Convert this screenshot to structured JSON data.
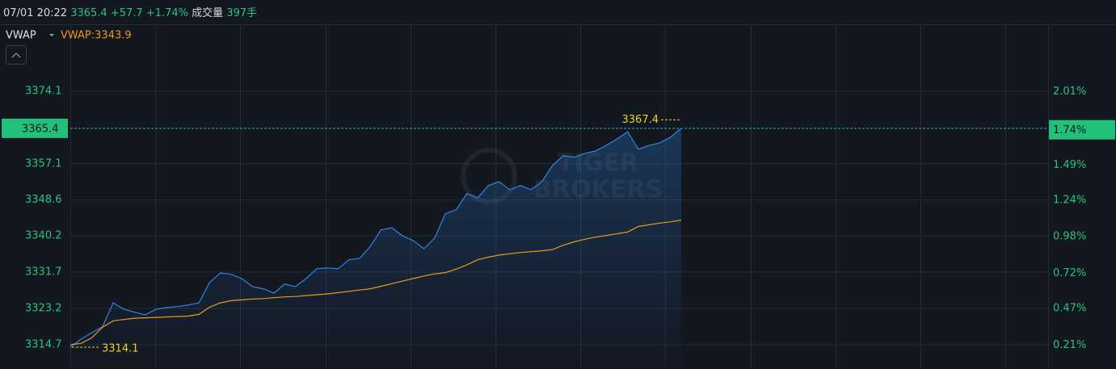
{
  "header": {
    "date_time": "07/01 20:22",
    "price": "3365.4",
    "change": "+57.7",
    "change_pct": "+1.74%",
    "volume_label": "成交量",
    "volume": "397手"
  },
  "chart_data": {
    "type": "line",
    "indicator": "VWAP",
    "indicator_value_label": "VWAP:3343.9",
    "watermark": [
      "TIGER",
      "BROKERS"
    ],
    "series": [
      {
        "color": "#2f86e6",
        "values": [
          3314.1,
          3316.0,
          3317.5,
          3318.9,
          3324.5,
          3323.0,
          3322.3,
          3321.7,
          3323.0,
          3323.4,
          3323.6,
          3324.0,
          3324.5,
          3329.3,
          3331.5,
          3331.2,
          3330.2,
          3328.3,
          3327.8,
          3326.8,
          3328.9,
          3328.3,
          3330.2,
          3332.5,
          3332.7,
          3332.5,
          3334.6,
          3334.9,
          3337.8,
          3341.6,
          3342.1,
          3340.2,
          3339.1,
          3337.2,
          3339.7,
          3345.4,
          3346.3,
          3350.1,
          3349.1,
          3352.0,
          3352.9,
          3351.0,
          3352.0,
          3351.0,
          3352.9,
          3356.7,
          3359.0,
          3358.6,
          3359.5,
          3360.1,
          3361.4,
          3362.9,
          3364.6,
          3360.5,
          3361.4,
          3362.0,
          3363.3,
          3365.4
        ]
      },
      {
        "name": "VWAP",
        "color": "#e69b1e",
        "values": [
          3314.7,
          3315.0,
          3316.3,
          3318.8,
          3320.3,
          3320.6,
          3320.9,
          3321.0,
          3321.1,
          3321.2,
          3321.3,
          3321.4,
          3321.8,
          3323.5,
          3324.5,
          3325.0,
          3325.2,
          3325.4,
          3325.5,
          3325.7,
          3325.9,
          3326.0,
          3326.2,
          3326.4,
          3326.6,
          3326.9,
          3327.2,
          3327.5,
          3327.8,
          3328.4,
          3329.0,
          3329.6,
          3330.2,
          3330.8,
          3331.3,
          3331.6,
          3332.4,
          3333.4,
          3334.6,
          3335.2,
          3335.7,
          3336.0,
          3336.3,
          3336.5,
          3336.7,
          3337.0,
          3338.0,
          3338.8,
          3339.4,
          3339.9,
          3340.3,
          3340.7,
          3341.1,
          3342.4,
          3342.8,
          3343.2,
          3343.5,
          3343.9
        ]
      }
    ],
    "ylim": [
      3309.0,
      3389.8
    ],
    "yticks": [
      3374.1,
      3357.1,
      3348.6,
      3340.2,
      3331.7,
      3323.2,
      3314.7
    ],
    "y2lim": [
      0.04,
      2.49
    ],
    "y2ticks": [
      {
        "value": 2.01,
        "label": "2.01%"
      },
      {
        "value": 1.49,
        "label": "1.49%"
      },
      {
        "value": 1.24,
        "label": "1.24%"
      },
      {
        "value": 0.98,
        "label": "0.98%"
      },
      {
        "value": 0.72,
        "label": "0.72%"
      },
      {
        "value": 0.47,
        "label": "0.47%"
      },
      {
        "value": 0.21,
        "label": "0.21%"
      }
    ],
    "last_price": 3365.4,
    "last_pct": {
      "value": 1.74,
      "label": "1.74%"
    },
    "high": 3367.4,
    "low": 3314.1,
    "grid": true
  }
}
